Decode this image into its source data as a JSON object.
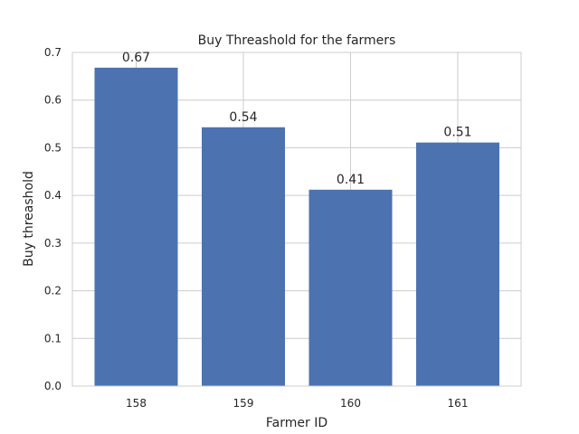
{
  "chart_data": {
    "type": "bar",
    "title": "Buy Threashold for the farmers",
    "xlabel": "Farmer ID",
    "ylabel": "Buy threashold",
    "categories": [
      "158",
      "159",
      "160",
      "161"
    ],
    "values": [
      0.668,
      0.543,
      0.412,
      0.511
    ],
    "value_labels": [
      "0.67",
      "0.54",
      "0.41",
      "0.51"
    ],
    "ylim": [
      0,
      0.7
    ],
    "yticks": [
      "0.0",
      "0.1",
      "0.2",
      "0.3",
      "0.4",
      "0.5",
      "0.6",
      "0.7"
    ],
    "grid": true,
    "bar_color": "#4c72b0",
    "grid_color": "#cccccc"
  }
}
